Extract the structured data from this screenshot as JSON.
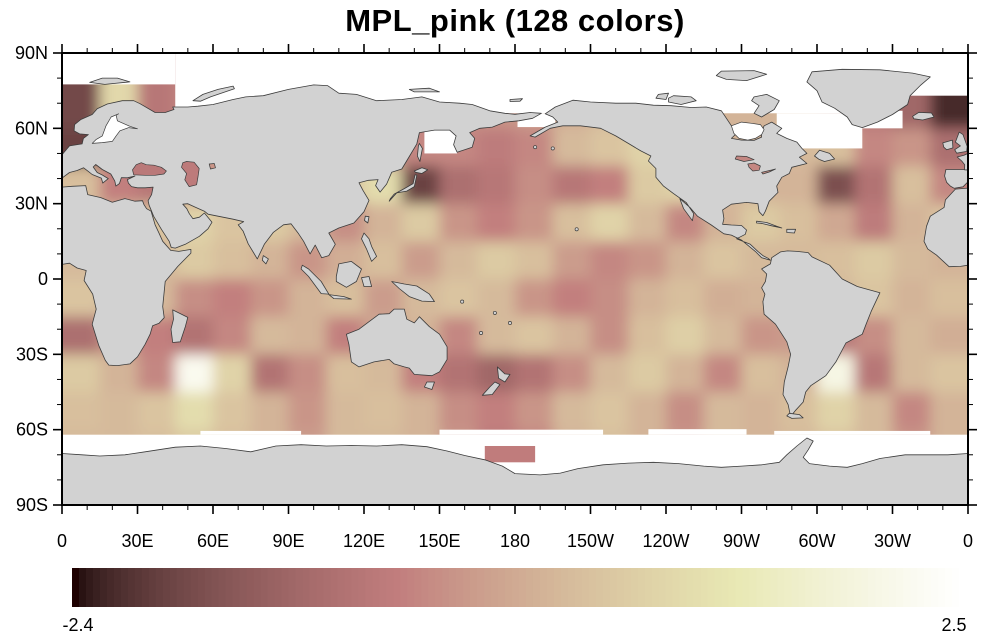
{
  "title": "MPL_pink (128 colors)",
  "colorbar": {
    "min_label": "-2.4",
    "max_label": "2.5",
    "n_colors": 128,
    "colormap_name": "MPL_pink"
  },
  "axes": {
    "lat_tick_labels": [
      "90N",
      "60N",
      "30N",
      "0",
      "30S",
      "60S",
      "90S"
    ],
    "lat_tick_values": [
      90,
      60,
      30,
      0,
      -30,
      -60,
      -90
    ],
    "lon_tick_labels": [
      "0",
      "30E",
      "60E",
      "90E",
      "120E",
      "150E",
      "180",
      "150W",
      "120W",
      "90W",
      "60W",
      "30W",
      "0"
    ],
    "lon_tick_values": [
      0,
      30,
      60,
      90,
      120,
      150,
      180,
      210,
      240,
      270,
      300,
      330,
      360
    ],
    "minor_tick_deg": 10,
    "major_tick_deg": 30
  },
  "map_style": {
    "land_color": "#d2d2d2",
    "coast_color": "#3c3c3c",
    "missing_color": "#ffffff",
    "frame_color": "#000000"
  },
  "chart_data": {
    "type": "heatmap",
    "title": "MPL_pink (128 colors)",
    "colormap": "MPL_pink",
    "n_colors": 128,
    "value_min": -2.4,
    "value_max": 2.5,
    "projection": "equirectangular world map, longitude 0E eastward to 360 (centered on 180), latitude 90N to 90S",
    "grid_cell_deg": 15,
    "grid_lon_start": 0,
    "grid_lat_start": 90,
    "note": "Sea-surface anomaly-like field; values estimated visually from the MPL_pink colorbar (-2.4 dark maroon to 2.5 white). Rows go north to south in 15-degree bands; columns go eastward from Greenwich. Land and missing_regions overlay the grid.",
    "values": [
      [
        -1.8,
        0.9,
        -0.8,
        -0.5,
        -0.5,
        -0.5,
        -0.5,
        -0.5,
        -0.5,
        -0.5,
        -0.5,
        -0.5,
        -0.3,
        0.0,
        0.2,
        0.3,
        0.3,
        0.2,
        0.2,
        0.2,
        -0.3,
        -0.8,
        -1.2,
        -2.2
      ],
      [
        -1.8,
        0.9,
        -0.8,
        -0.5,
        -0.4,
        -0.4,
        -0.4,
        -0.4,
        -0.5,
        -0.5,
        -0.4,
        -0.3,
        -0.2,
        0.1,
        0.3,
        0.4,
        0.3,
        0.2,
        0.2,
        0.3,
        -0.2,
        -0.8,
        -1.2,
        -2.2
      ],
      [
        -1.9,
        -0.9,
        -0.5,
        -0.3,
        -0.2,
        -0.2,
        -0.3,
        -0.4,
        -0.5,
        -0.5,
        -0.5,
        -0.7,
        -0.5,
        0.3,
        0.5,
        0.8,
        0.5,
        0.2,
        0.2,
        0.3,
        0.4,
        -0.5,
        -0.3,
        -1.0
      ],
      [
        0.4,
        -0.6,
        -0.8,
        -0.3,
        0.0,
        0.2,
        0.3,
        0.5,
        1.0,
        -1.9,
        -1.0,
        -0.8,
        -0.4,
        -0.8,
        -0.6,
        0.6,
        0.8,
        0.3,
        0.2,
        0.2,
        -1.7,
        -0.9,
        0.4,
        -0.5
      ],
      [
        0.2,
        0.3,
        0.5,
        0.8,
        0.5,
        0.6,
        0.3,
        -0.4,
        0.2,
        0.6,
        -0.3,
        -0.6,
        -0.3,
        0.4,
        0.8,
        0.3,
        -0.5,
        0.2,
        0.6,
        0.4,
        0.0,
        -0.7,
        0.2,
        0.5
      ],
      [
        0.3,
        0.2,
        0.2,
        0.6,
        0.4,
        0.2,
        -0.3,
        0.1,
        0.4,
        -0.2,
        0.3,
        0.6,
        0.4,
        -0.2,
        -0.5,
        -0.3,
        0.2,
        0.5,
        0.3,
        0.3,
        0.4,
        0.6,
        0.3,
        0.2
      ],
      [
        0.5,
        0.3,
        0.3,
        -0.4,
        -0.6,
        -0.3,
        0.2,
        0.4,
        -0.2,
        0.3,
        0.5,
        0.3,
        -0.3,
        -0.6,
        -0.4,
        0.2,
        0.4,
        0.1,
        0.2,
        0.3,
        0.3,
        0.5,
        0.2,
        0.4
      ],
      [
        -1.0,
        -0.3,
        -0.6,
        -0.9,
        -0.5,
        0.3,
        0.2,
        -0.6,
        0.0,
        0.2,
        -0.5,
        0.3,
        0.5,
        0.2,
        -0.4,
        0.4,
        0.7,
        0.3,
        -0.3,
        -0.2,
        -0.8,
        -0.4,
        0.3,
        0.1
      ],
      [
        0.6,
        0.2,
        -0.5,
        2.2,
        0.8,
        -0.9,
        -0.4,
        0.4,
        0.3,
        -0.6,
        -0.9,
        -1.2,
        -0.9,
        -0.4,
        0.3,
        0.6,
        0.2,
        -0.5,
        0.4,
        0.2,
        2.0,
        -0.8,
        0.3,
        0.5
      ],
      [
        0.4,
        0.3,
        0.5,
        1.0,
        0.5,
        0.2,
        -0.3,
        0.3,
        0.4,
        0.2,
        -0.4,
        -0.6,
        -0.3,
        0.3,
        0.5,
        0.2,
        -0.4,
        0.3,
        0.2,
        0.4,
        0.8,
        0.3,
        -0.5,
        0.2
      ],
      [
        0.3,
        0.3,
        0.4,
        0.6,
        0.4,
        0.2,
        -0.2,
        0.3,
        0.3,
        0.2,
        -0.3,
        -0.7,
        -0.5,
        0.2,
        0.4,
        0.2,
        -0.3,
        0.3,
        0.2,
        0.3,
        0.5,
        0.3,
        -0.3,
        0.2
      ],
      [
        0.3,
        0.3,
        0.4,
        0.6,
        0.4,
        0.2,
        -0.2,
        0.3,
        0.3,
        0.2,
        -0.3,
        -0.7,
        -0.5,
        0.2,
        0.4,
        0.2,
        -0.3,
        0.3,
        0.2,
        0.3,
        0.5,
        0.3,
        -0.3,
        0.2
      ]
    ],
    "missing_regions": [
      "Arctic Ocean north of ~66N (except Norwegian/Barents seas to ~78N and NE Atlantic to ~73N)",
      "Southern Ocean band from ~60-62S to Antarctic coast (with a rose patch near 170E-185E)",
      "Sea of Okhotsk",
      "Bering Strait area",
      "Hudson Bay",
      "Labrador Sea / Davis Strait",
      "Denmark Strait west of Iceland",
      "Baltic Sea"
    ],
    "legend": {
      "position": "horizontal labelbar below map",
      "end_labels": [
        "-2.4",
        "2.5"
      ]
    }
  }
}
